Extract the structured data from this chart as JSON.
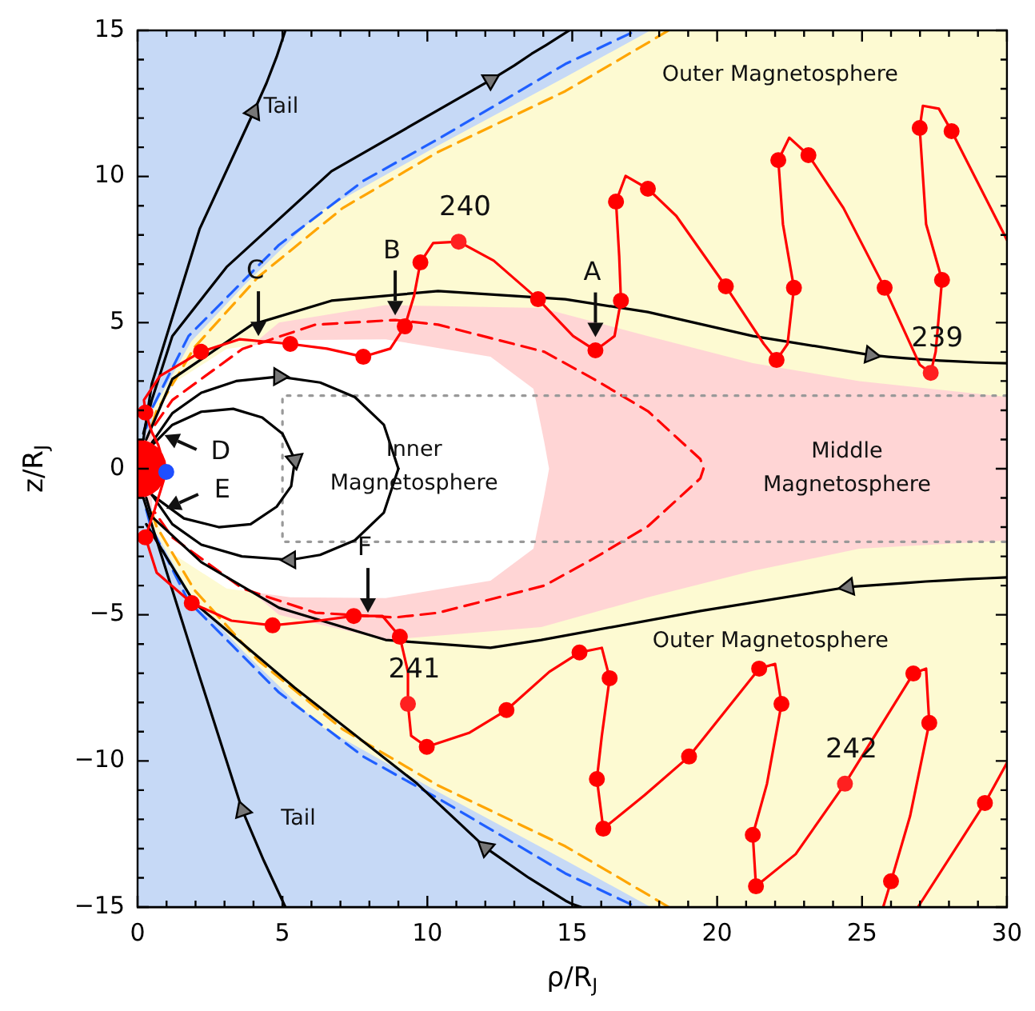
{
  "chart_data": {
    "type": "line",
    "xlabel": "ρ/R$_{J}$",
    "ylabel": "z/R$_{J}$",
    "xlim": [
      0,
      30
    ],
    "ylim": [
      -15,
      15
    ],
    "xticks": [
      0,
      {
        "value": 1,
        "label": null
      },
      {
        "value": 2,
        "label": null
      },
      {
        "value": 3,
        "label": null
      },
      {
        "value": 4,
        "label": null
      },
      5,
      {
        "value": 6,
        "label": null
      },
      {
        "value": 7,
        "label": null
      },
      {
        "value": 8,
        "label": null
      },
      {
        "value": 9,
        "label": null
      },
      10,
      {
        "value": 11,
        "label": null
      },
      {
        "value": 12,
        "label": null
      },
      {
        "value": 13,
        "label": null
      },
      {
        "value": 14,
        "label": null
      },
      15,
      {
        "value": 16,
        "label": null
      },
      {
        "value": 17,
        "label": null
      },
      {
        "value": 18,
        "label": null
      },
      {
        "value": 19,
        "label": null
      },
      20,
      {
        "value": 21,
        "label": null
      },
      {
        "value": 22,
        "label": null
      },
      {
        "value": 23,
        "label": null
      },
      {
        "value": 24,
        "label": null
      },
      25,
      {
        "value": 26,
        "label": null
      },
      {
        "value": 27,
        "label": null
      },
      {
        "value": 28,
        "label": null
      },
      {
        "value": 29,
        "label": null
      },
      30
    ],
    "yticks": [
      {
        "value": -15,
        "label": "−15"
      },
      {
        "value": -14,
        "label": null
      },
      {
        "value": -13,
        "label": null
      },
      {
        "value": -12,
        "label": null
      },
      {
        "value": -11,
        "label": null
      },
      {
        "value": -10,
        "label": "−10"
      },
      {
        "value": -9,
        "label": null
      },
      {
        "value": -8,
        "label": null
      },
      {
        "value": -7,
        "label": null
      },
      {
        "value": -6,
        "label": null
      },
      {
        "value": -5,
        "label": "−5"
      },
      {
        "value": -4,
        "label": null
      },
      {
        "value": -3,
        "label": null
      },
      {
        "value": -2,
        "label": null
      },
      {
        "value": -1,
        "label": null
      },
      0,
      {
        "value": 1,
        "label": null
      },
      {
        "value": 2,
        "label": null
      },
      {
        "value": 3,
        "label": null
      },
      {
        "value": 4,
        "label": null
      },
      5,
      {
        "value": 6,
        "label": null
      },
      {
        "value": 7,
        "label": null
      },
      {
        "value": 8,
        "label": null
      },
      {
        "value": 9,
        "label": null
      },
      10,
      {
        "value": 11,
        "label": null
      },
      {
        "value": 12,
        "label": null
      },
      {
        "value": 13,
        "label": null
      },
      {
        "value": 14,
        "label": null
      },
      15
    ],
    "legend": false,
    "series": [
      {
        "type": "area",
        "color": "#c6d9f6",
        "x": [
          0,
          0,
          30,
          30
        ],
        "values": [
          -15,
          15,
          15,
          -15
        ]
      },
      {
        "type": "area",
        "color": "#fdfad2",
        "x": [
          0.5,
          1.85,
          3.7,
          6.3,
          10.37,
          14.76,
          17.7,
          30,
          30,
          17.7,
          14.76,
          10.37,
          6.3,
          3.7,
          1.85,
          0.5
        ],
        "values": [
          1.97,
          4.35,
          6.3,
          8.8,
          11.06,
          13.4,
          15,
          15,
          -15,
          -15,
          -13.4,
          -11.06,
          -8.8,
          -6.3,
          -4.35,
          -1.97
        ]
      },
      {
        "type": "area",
        "color": "#ffd5d5",
        "x": [
          0.3,
          4.88,
          8.56,
          13.93,
          17.61,
          21.23,
          24.9,
          30,
          30,
          24.9,
          21.23,
          17.61,
          13.93,
          8.56,
          4.88,
          0.3
        ],
        "values": [
          1.2,
          5.0,
          5.6,
          5.5,
          4.54,
          3.61,
          3.0,
          2.46,
          -2.46,
          -2.74,
          -3.5,
          -4.4,
          -5.42,
          -5.86,
          -5.0,
          -1.2
        ]
      },
      {
        "type": "area",
        "color": "#ffffff",
        "x": [
          0.5,
          1.2,
          3.07,
          5.27,
          8.56,
          12.18,
          13.66,
          14.04,
          14.2,
          14.04,
          13.66,
          12.18,
          8.56,
          5.27,
          3.07,
          1.2,
          0.5
        ],
        "values": [
          1.5,
          2.9,
          4.1,
          4.4,
          4.43,
          3.83,
          2.74,
          0.88,
          0,
          -0.88,
          -2.74,
          -3.83,
          -4.43,
          -4.4,
          -4.1,
          -2.9,
          -1.5
        ]
      },
      {
        "color": "#1f5fff",
        "line_style": "dashed",
        "marker": "none",
        "x": [
          0.3,
          0.45,
          1.76,
          3.24,
          4.88,
          7.79,
          10.37,
          14.76,
          17.22
        ],
        "values": [
          1.4,
          1.97,
          4.54,
          6.02,
          7.66,
          9.85,
          11.28,
          13.85,
          15
        ]
      },
      {
        "color": "#1f5fff",
        "line_style": "dashed",
        "marker": "none",
        "x": [
          0.3,
          0.45,
          1.76,
          3.24,
          4.88,
          7.79,
          10.37,
          14.76,
          17.22
        ],
        "values": [
          -1.4,
          -1.97,
          -4.54,
          -6.02,
          -7.66,
          -9.85,
          -11.28,
          -13.85,
          -15
        ]
      },
      {
        "color": "#ffa500",
        "line_style": "dashed",
        "marker": "none",
        "x": [
          0.5,
          0.65,
          1.97,
          4.17,
          7.08,
          10.37,
          14.76,
          17.77,
          18.32
        ],
        "values": [
          1.5,
          1.97,
          4.16,
          6.57,
          8.92,
          10.84,
          12.92,
          14.67,
          15
        ]
      },
      {
        "color": "#ffa500",
        "line_style": "dashed",
        "marker": "none",
        "x": [
          0.5,
          0.65,
          1.97,
          4.17,
          7.08,
          10.37,
          14.76,
          17.77,
          18.32
        ],
        "values": [
          -1.5,
          -1.97,
          -4.16,
          -6.57,
          -8.92,
          -10.84,
          -12.92,
          -14.67,
          -15
        ]
      },
      {
        "color": "#ff0000",
        "line_style": "dashed",
        "marker": "none",
        "x": [
          0.6,
          1.2,
          3.62,
          6.14,
          8.89,
          10.37,
          14.04,
          15.74,
          17.61,
          19.42,
          19.53,
          19.42,
          17.61,
          15.74,
          14.04,
          10.37,
          8.89,
          6.14,
          3.62,
          1.2,
          0.6
        ],
        "values": [
          1.5,
          2.35,
          4.1,
          4.93,
          5.09,
          4.93,
          4.0,
          3.07,
          1.97,
          0.33,
          0,
          -0.33,
          -1.97,
          -3.07,
          -4.0,
          -4.93,
          -5.09,
          -4.93,
          -4.1,
          -2.35,
          -1.5
        ]
      },
      {
        "color": "#999999",
        "line_style": "dotted",
        "marker": "none",
        "x": [
          30,
          5,
          5,
          30
        ],
        "values": [
          2.5,
          2.5,
          -2.5,
          -2.5
        ]
      },
      {
        "color": "#000000",
        "line_style": "solid",
        "x": [
          0.2,
          0.49,
          2.14,
          4.0,
          4.45,
          4.8,
          5.1
        ],
        "values": [
          1.0,
          2.9,
          8.2,
          12.2,
          13.2,
          14.1,
          15
        ]
      },
      {
        "color": "#000000",
        "line_style": "solid",
        "x": [
          5.1,
          4.35,
          3.62,
          2.14,
          0.2
        ],
        "values": [
          -15,
          -13.4,
          -11.7,
          -7.12,
          -1.0
        ]
      },
      {
        "color": "#000000",
        "line_style": "solid",
        "x": [
          0.2,
          0.49,
          1.2,
          3.07,
          6.69,
          12.18,
          13.0,
          13.6,
          14.1,
          14.5,
          14.9
        ],
        "values": [
          1.2,
          2.35,
          4.54,
          6.9,
          10.18,
          13.3,
          13.8,
          14.2,
          14.5,
          14.75,
          15
        ]
      },
      {
        "color": "#000000",
        "line_style": "solid",
        "x": [
          15.3,
          15.0,
          14.76,
          13.5,
          12.01,
          9.65,
          5.43,
          1.97,
          0.3
        ],
        "values": [
          -15,
          -14.9,
          -14.78,
          -14.0,
          -12.97,
          -10.78,
          -7.5,
          -4.6,
          -1.9
        ]
      },
      {
        "color": "#000000",
        "line_style": "solid",
        "x": [
          0.3,
          1.2,
          3.95,
          6.69,
          10.37,
          14.76,
          17.61,
          21.23,
          25.3,
          25.9,
          26.5,
          27.1,
          27.7,
          28.3,
          28.9,
          29.5,
          30
        ],
        "values": [
          1.0,
          3.07,
          4.93,
          5.75,
          6.08,
          5.8,
          5.36,
          4.54,
          3.89,
          3.83,
          3.78,
          3.74,
          3.7,
          3.67,
          3.64,
          3.62,
          3.61
        ]
      },
      {
        "color": "#000000",
        "line_style": "solid",
        "x": [
          30,
          29.3,
          28.6,
          27.9,
          27.2,
          26.5,
          25.8,
          25.2,
          24.52,
          19.42,
          13.93,
          12.18,
          8.56,
          4.88,
          2.2,
          0.49,
          0.3
        ],
        "values": [
          -3.72,
          -3.75,
          -3.78,
          -3.82,
          -3.86,
          -3.91,
          -3.96,
          -4.0,
          -4.05,
          -4.87,
          -5.86,
          -6.13,
          -5.86,
          -4.76,
          -3.2,
          -1.64,
          -1.0
        ]
      },
      {
        "color": "#000000",
        "line_style": "solid",
        "x": [
          0.5,
          1.2,
          2.2,
          3.4,
          4.88,
          6.3,
          7.5,
          8.5,
          9.0
        ],
        "values": [
          0.9,
          1.9,
          2.6,
          3.0,
          3.15,
          2.95,
          2.45,
          1.5,
          0
        ]
      },
      {
        "color": "#000000",
        "line_style": "solid",
        "x": [
          9.0,
          8.5,
          7.5,
          6.3,
          5.27,
          3.6,
          2.2,
          1.2,
          0.5
        ],
        "values": [
          0,
          -1.5,
          -2.45,
          -2.95,
          -3.12,
          -3.0,
          -2.6,
          -1.9,
          -0.9
        ]
      },
      {
        "color": "#000000",
        "line_style": "solid",
        "x": [
          0.5,
          1.2,
          2.2,
          3.3,
          4.3,
          5.0,
          5.43,
          5.3,
          4.8,
          3.9,
          2.8,
          1.6,
          0.5
        ],
        "values": [
          0.8,
          1.5,
          1.95,
          2.05,
          1.75,
          1.2,
          0.3,
          -0.6,
          -1.3,
          -1.9,
          -2.0,
          -1.7,
          -0.9
        ]
      },
      {
        "type": "area",
        "color": "#ff0000",
        "x": [
          0,
          0.26,
          0.5,
          0.71,
          0.87,
          0.97,
          1,
          0.97,
          0.87,
          0.71,
          0.5,
          0.26,
          0
        ],
        "values": [
          1,
          0.97,
          0.87,
          0.71,
          0.5,
          0.26,
          0,
          -0.26,
          -0.5,
          -0.71,
          -0.87,
          -0.97,
          -1
        ]
      },
      {
        "color": "#ff0000",
        "line_style": "solid",
        "marker": "none",
        "x": [
          30.0,
          28.09,
          27.65,
          27.1,
          26.99,
          27.21,
          27.76,
          27.54,
          27.37,
          26.99,
          25.78,
          24.36,
          23.15,
          22.49,
          22.11,
          22.27,
          22.65,
          22.43,
          22.05,
          21.61,
          20.3,
          18.59,
          17.61,
          16.84,
          16.51,
          16.62,
          16.68,
          16.46,
          15.8,
          15.03,
          13.82,
          12.29,
          11.08,
          10.2,
          9.76,
          9.54,
          9.22,
          8.72,
          7.79,
          6.53,
          5.27,
          3.51,
          2.19,
          0.77,
          0.22,
          0.27,
          0.49,
          0.71,
          0.99,
          0.6,
          0.27,
          0.66,
          1.87,
          3.24,
          4.66,
          6.25,
          7.46,
          8.45,
          9.05,
          9.33,
          9.33,
          9.44,
          9.98,
          11.46,
          12.73,
          14.21,
          15.25,
          16.02,
          16.29,
          16.02,
          15.85,
          16.07,
          17.5,
          19.03,
          21.45,
          22.0,
          22.22,
          21.72,
          21.23,
          21.34,
          22.71,
          24.41,
          26.77,
          27.21,
          27.32,
          26.66,
          26.0,
          25.73,
          null,
          26.93,
          29.24,
          30.0
        ],
        "values": [
          7.83,
          11.55,
          12.32,
          12.42,
          11.66,
          8.37,
          6.46,
          4.0,
          3.28,
          3.56,
          6.19,
          8.92,
          10.73,
          11.33,
          10.56,
          8.37,
          6.19,
          4.27,
          3.72,
          4.27,
          6.24,
          8.65,
          9.58,
          10.02,
          9.14,
          7.28,
          5.75,
          4.54,
          4.05,
          4.54,
          5.8,
          7.12,
          7.77,
          7.72,
          7.06,
          5.91,
          4.87,
          4.11,
          3.83,
          4.11,
          4.27,
          4.43,
          4.0,
          3.17,
          2.35,
          1.92,
          1.26,
          0.82,
          -0.11,
          -1.37,
          -2.35,
          -3.56,
          -4.6,
          -5.2,
          -5.36,
          -5.2,
          -5.04,
          -5.04,
          -5.75,
          -6.95,
          -8.05,
          -9.14,
          -9.52,
          -9.03,
          -8.26,
          -6.95,
          -6.29,
          -6.13,
          -7.17,
          -9.14,
          -10.62,
          -12.32,
          -11.17,
          -9.85,
          -6.84,
          -6.68,
          -8.05,
          -10.78,
          -12.53,
          -14.29,
          -13.19,
          -10.78,
          -7.01,
          -6.84,
          -8.7,
          -11.88,
          -14.12,
          -15.0,
          null,
          -15.0,
          -11.44,
          -10.07
        ]
      },
      {
        "type": "scatter",
        "color": "#ff0000",
        "marker": "circle",
        "x": [
          28.09,
          26.99,
          27.76,
          25.78,
          23.15,
          22.11,
          22.65,
          22.05,
          20.3,
          17.61,
          16.51,
          16.68,
          15.8,
          13.82,
          9.76,
          9.22,
          7.79,
          5.27,
          2.19,
          0.27,
          0.27,
          1.87,
          4.66,
          7.46,
          9.05,
          9.98,
          12.73,
          15.25,
          16.29,
          15.85,
          16.07,
          19.03,
          21.45,
          22.22,
          21.23,
          21.34,
          26.77,
          27.32,
          26.0,
          29.24
        ],
        "values": [
          11.55,
          11.66,
          6.46,
          6.19,
          10.73,
          10.56,
          6.19,
          3.72,
          6.24,
          9.58,
          9.14,
          5.75,
          4.05,
          5.8,
          7.06,
          4.87,
          3.83,
          4.27,
          4.0,
          1.92,
          -2.35,
          -4.6,
          -5.36,
          -5.04,
          -5.75,
          -9.52,
          -8.26,
          -6.29,
          -7.17,
          -10.62,
          -12.32,
          -9.85,
          -6.84,
          -8.05,
          -12.53,
          -14.29,
          -7.01,
          -8.7,
          -14.12,
          -11.44
        ]
      },
      {
        "type": "scatter",
        "color": "#ff2020",
        "marker": "circle",
        "x": [
          27.37,
          11.08,
          9.33,
          24.41
        ],
        "values": [
          3.28,
          7.77,
          -8.05,
          -10.78
        ]
      },
      {
        "type": "scatter",
        "color": "#1f4fff",
        "marker": "circle",
        "x": [
          0.99
        ],
        "values": [
          -0.11
        ]
      }
    ],
    "annotations": [
      {
        "text": "A",
        "x": 15.8,
        "y": 4.5
      },
      {
        "text": "B",
        "x": 8.89,
        "y": 5.25
      },
      {
        "text": "C",
        "x": 4.17,
        "y": 4.54
      },
      {
        "text": "D",
        "x": 0.93,
        "y": 1.15
      },
      {
        "text": "E",
        "x": 0.99,
        "y": -1.37
      },
      {
        "text": "F",
        "x": 7.95,
        "y": -4.93
      },
      {
        "text": "239",
        "x": 27.37,
        "y": 3.28
      },
      {
        "text": "240",
        "x": 11.08,
        "y": 7.77
      },
      {
        "text": "241",
        "x": 9.33,
        "y": -8.05
      },
      {
        "text": "242",
        "x": 24.41,
        "y": -10.78
      },
      "Tail",
      "Outer Magnetosphere",
      "Inner\nMagnetosphere",
      "Middle\nMagnetosphere",
      "Outer Magnetosphere",
      "Tail"
    ]
  }
}
